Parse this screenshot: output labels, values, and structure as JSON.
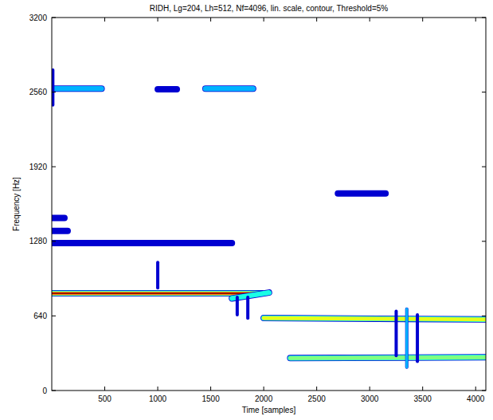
{
  "chart_data": {
    "type": "contour",
    "title": "RIDH, Lg=204, Lh=512, Nf=4096, lin. scale, contour, Threshold=5%",
    "x_label": "Time [samples]",
    "y_label": "Frequency [Hz]",
    "xlim": [
      0,
      4096
    ],
    "ylim": [
      0,
      3200
    ],
    "xticks": [
      500,
      1000,
      1500,
      2000,
      2500,
      3000,
      3500,
      4000
    ],
    "yticks": [
      0,
      640,
      1280,
      1920,
      2560,
      3200
    ],
    "ridges": [
      {
        "x": [
          0,
          1980
        ],
        "y": [
          834,
          834
        ],
        "level": 1
      },
      {
        "x": [
          1700,
          2050
        ],
        "y": [
          790,
          840
        ],
        "level": 0.4
      },
      {
        "x": [
          0,
          470
        ],
        "y": [
          2590,
          2590
        ],
        "level": 0.3
      },
      {
        "x": [
          1000,
          1180
        ],
        "y": [
          2585,
          2585
        ],
        "level": 0.15
      },
      {
        "x": [
          1450,
          1900
        ],
        "y": [
          2590,
          2590
        ],
        "level": 0.3
      },
      {
        "x": [
          0,
          1700
        ],
        "y": [
          1265,
          1265
        ],
        "level": 0.2
      },
      {
        "x": [
          0,
          150
        ],
        "y": [
          1370,
          1370
        ],
        "level": 0.15
      },
      {
        "x": [
          0,
          120
        ],
        "y": [
          1480,
          1480
        ],
        "level": 0.1
      },
      {
        "x": [
          2700,
          3150
        ],
        "y": [
          1690,
          1690
        ],
        "level": 0.25
      },
      {
        "x": [
          2000,
          4096
        ],
        "y": [
          622,
          610
        ],
        "level": 0.65
      },
      {
        "x": [
          2250,
          4096
        ],
        "y": [
          278,
          285
        ],
        "level": 0.5
      },
      {
        "x": [
          1750,
          1750
        ],
        "y": [
          650,
          800
        ],
        "level": 0.2
      },
      {
        "x": [
          1850,
          1850
        ],
        "y": [
          620,
          800
        ],
        "level": 0.2
      },
      {
        "x": [
          3250,
          3250
        ],
        "y": [
          300,
          680
        ],
        "level": 0.2
      },
      {
        "x": [
          3350,
          3350
        ],
        "y": [
          200,
          700
        ],
        "level": 0.3
      },
      {
        "x": [
          3450,
          3450
        ],
        "y": [
          250,
          650
        ],
        "level": 0.2
      },
      {
        "x": [
          1000,
          1000
        ],
        "y": [
          880,
          1100
        ],
        "level": 0.1
      },
      {
        "x": [
          10,
          10
        ],
        "y": [
          2450,
          2750
        ],
        "level": 0.1
      }
    ]
  }
}
